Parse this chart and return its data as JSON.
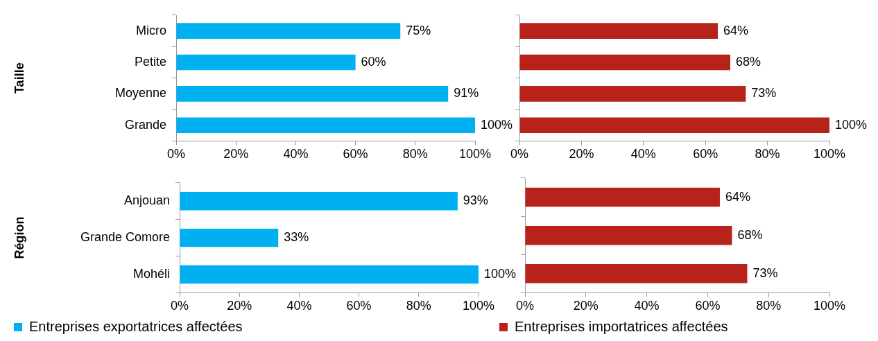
{
  "chart_data": [
    {
      "type": "bar",
      "orientation": "horizontal",
      "ylabel": "Taille",
      "categories": [
        "Micro",
        "Petite",
        "Moyenne",
        "Grande"
      ],
      "series": [
        {
          "color": "#00b0f0",
          "values": [
            75,
            60,
            91,
            100
          ],
          "value_labels": [
            "75%",
            "60%",
            "91%",
            "100%"
          ]
        }
      ],
      "xlim": [
        0,
        100
      ],
      "xticks": [
        {
          "value": 0,
          "label": "0%"
        },
        {
          "value": 20,
          "label": "20%"
        },
        {
          "value": 40,
          "label": "40%"
        },
        {
          "value": 60,
          "label": "60%"
        },
        {
          "value": 80,
          "label": "80%"
        },
        {
          "value": 100,
          "label": "100%"
        }
      ],
      "grid": false,
      "legend": false
    },
    {
      "type": "bar",
      "orientation": "horizontal",
      "categories": [
        null,
        null,
        null,
        null
      ],
      "series": [
        {
          "color": "#b7221b",
          "values": [
            64,
            68,
            73,
            100
          ],
          "value_labels": [
            "64%",
            "68%",
            "73%",
            "100%"
          ]
        }
      ],
      "xlim": [
        0,
        100
      ],
      "xticks": [
        {
          "value": 0,
          "label": "0%"
        },
        {
          "value": 20,
          "label": "20%"
        },
        {
          "value": 40,
          "label": "40%"
        },
        {
          "value": 60,
          "label": "60%"
        },
        {
          "value": 80,
          "label": "80%"
        },
        {
          "value": 100,
          "label": "100%"
        }
      ],
      "grid": false,
      "legend": false,
      "tick_labels": "x"
    },
    {
      "type": "bar",
      "orientation": "horizontal",
      "ylabel": "Région",
      "categories": [
        "Anjouan",
        "Grande Comore",
        "Mohéli"
      ],
      "series": [
        {
          "name": "Entreprises exportatrices affectées",
          "color": "#00b0f0",
          "values": [
            93,
            33,
            100
          ],
          "value_labels": [
            "93%",
            "33%",
            "100%"
          ]
        }
      ],
      "xlim": [
        0,
        100
      ],
      "xticks": [
        {
          "value": 0,
          "label": "0%"
        },
        {
          "value": 20,
          "label": "20%"
        },
        {
          "value": 40,
          "label": "40%"
        },
        {
          "value": 60,
          "label": "60%"
        },
        {
          "value": 80,
          "label": "80%"
        },
        {
          "value": 100,
          "label": "100%"
        }
      ],
      "grid": false,
      "legend": "bottom"
    },
    {
      "type": "bar",
      "orientation": "horizontal",
      "categories": [
        null,
        null,
        null
      ],
      "series": [
        {
          "name": "Entreprises importatrices affectées",
          "color": "#b7221b",
          "values": [
            64,
            68,
            73
          ],
          "value_labels": [
            "64%",
            "68%",
            "73%"
          ]
        }
      ],
      "xlim": [
        0,
        100
      ],
      "xticks": [
        {
          "value": 0,
          "label": "0%"
        },
        {
          "value": 20,
          "label": "20%"
        },
        {
          "value": 40,
          "label": "40%"
        },
        {
          "value": 60,
          "label": "60%"
        },
        {
          "value": 80,
          "label": "80%"
        },
        {
          "value": 100,
          "label": "100%"
        }
      ],
      "grid": false,
      "legend": "bottom",
      "tick_labels": "x"
    }
  ]
}
